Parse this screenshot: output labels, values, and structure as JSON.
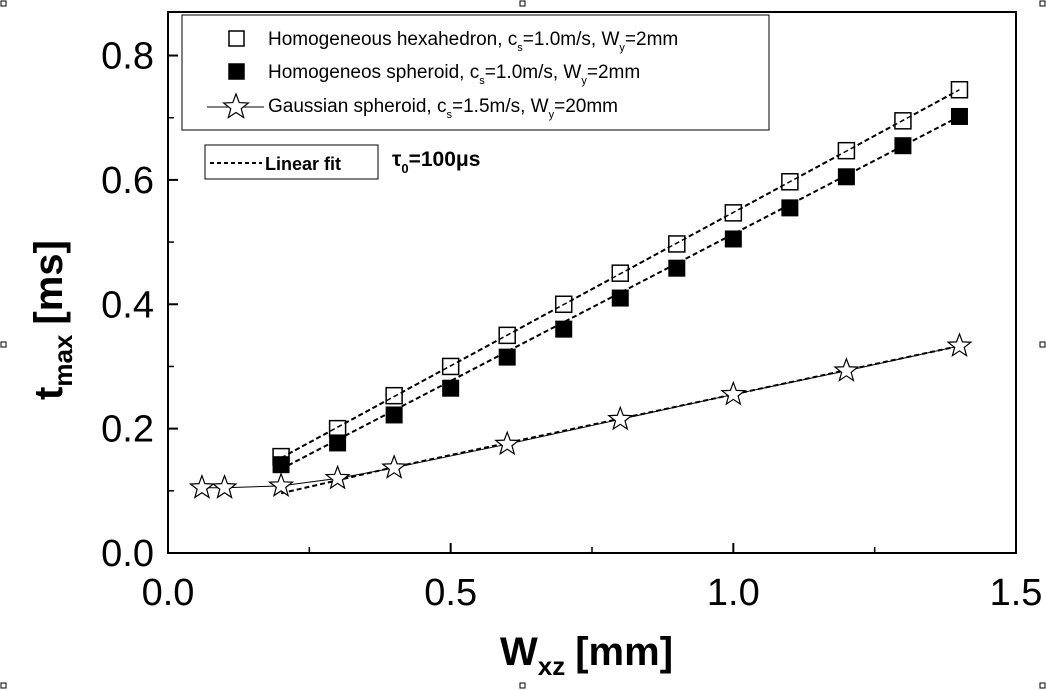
{
  "chart_data": {
    "type": "scatter",
    "xlabel": "W",
    "xlabel_sub": "xz",
    "xlabel_unit": "[mm]",
    "ylabel": "t",
    "ylabel_sub": "max",
    "ylabel_unit": "[ms]",
    "xlim": [
      0.0,
      1.5
    ],
    "ylim": [
      0.0,
      0.87
    ],
    "x_ticks": [
      0.0,
      0.5,
      1.0,
      1.5
    ],
    "x_tick_labels": [
      "0.0",
      "0.5",
      "1.0",
      "1.5"
    ],
    "y_ticks": [
      0.0,
      0.2,
      0.4,
      0.6,
      0.8
    ],
    "y_tick_labels": [
      "0.0",
      "0.2",
      "0.4",
      "0.6",
      "0.8"
    ],
    "series": [
      {
        "name": "Homogeneous hexahedron",
        "legend_parts": [
          "Homogeneous hexahedron, c",
          "s",
          "=1.0m/s, W",
          "y",
          "=2mm"
        ],
        "marker": "open-square",
        "x": [
          0.2,
          0.3,
          0.4,
          0.5,
          0.6,
          0.7,
          0.8,
          0.9,
          1.0,
          1.1,
          1.2,
          1.3,
          1.4
        ],
        "y": [
          0.155,
          0.2,
          0.253,
          0.3,
          0.35,
          0.4,
          0.45,
          0.497,
          0.547,
          0.597,
          0.647,
          0.695,
          0.745
        ],
        "fit": {
          "x": [
            0.2,
            1.4
          ],
          "y": [
            0.153,
            0.745
          ]
        }
      },
      {
        "name": "Homogeneos spheroid",
        "legend_parts": [
          "Homogeneos spheroid, c",
          "s",
          "=1.0m/s, W",
          "y",
          "=2mm"
        ],
        "marker": "filled-square",
        "x": [
          0.2,
          0.3,
          0.4,
          0.5,
          0.6,
          0.7,
          0.8,
          0.9,
          1.0,
          1.1,
          1.2,
          1.3,
          1.4
        ],
        "y": [
          0.142,
          0.177,
          0.222,
          0.265,
          0.315,
          0.36,
          0.41,
          0.458,
          0.505,
          0.555,
          0.605,
          0.655,
          0.702
        ],
        "fit": {
          "x": [
            0.2,
            1.4
          ],
          "y": [
            0.135,
            0.702
          ]
        }
      },
      {
        "name": "Gaussian spheroid",
        "legend_parts": [
          "Gaussian spheroid, c",
          "s",
          "=1.5m/s, W",
          "y",
          "=20mm"
        ],
        "marker": "open-star",
        "x": [
          0.06,
          0.1,
          0.2,
          0.3,
          0.4,
          0.6,
          0.8,
          1.0,
          1.2,
          1.4
        ],
        "y": [
          0.105,
          0.105,
          0.108,
          0.12,
          0.137,
          0.175,
          0.215,
          0.255,
          0.293,
          0.333
        ],
        "fit": {
          "x": [
            0.2,
            0.4,
            1.4
          ],
          "y": [
            0.096,
            0.138,
            0.333
          ]
        }
      }
    ],
    "fit_legend": "Linear fit",
    "annotation": {
      "prefix": "τ",
      "sub": "0",
      "value": "=100μs"
    }
  }
}
